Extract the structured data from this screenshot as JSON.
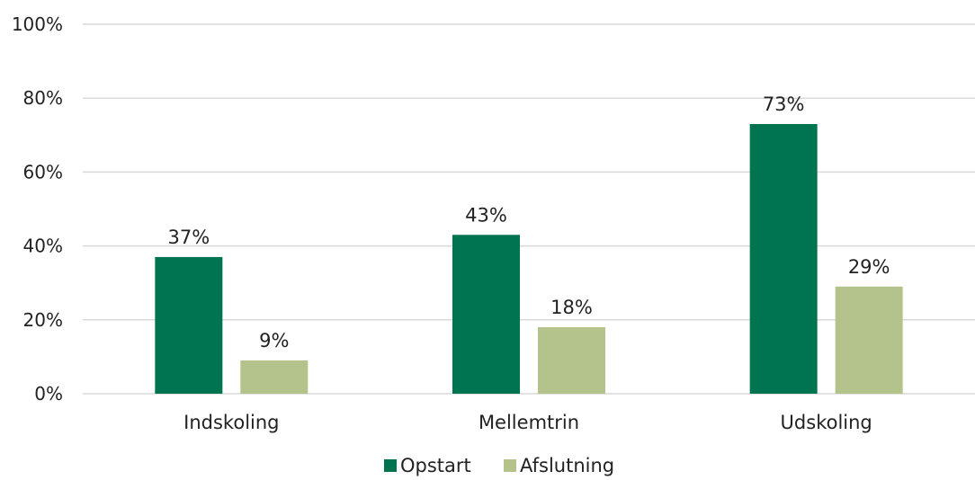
{
  "chart_data": {
    "type": "bar",
    "categories": [
      "Indskoling",
      "Mellemtrin",
      "Udskoling"
    ],
    "series": [
      {
        "name": "Opstart",
        "values": [
          37,
          43,
          73
        ],
        "labels": [
          "37%",
          "43%",
          "73%"
        ],
        "color": "#007350"
      },
      {
        "name": "Afslutning",
        "values": [
          9,
          18,
          29
        ],
        "labels": [
          "9%",
          "18%",
          "29%"
        ],
        "color": "#b4c38c"
      }
    ],
    "ylim": [
      0,
      100
    ],
    "yticks": [
      0,
      20,
      40,
      60,
      80,
      100
    ],
    "ytick_labels": [
      "0%",
      "20%",
      "40%",
      "60%",
      "80%",
      "100%"
    ],
    "grid": true,
    "legend_position": "bottom"
  }
}
